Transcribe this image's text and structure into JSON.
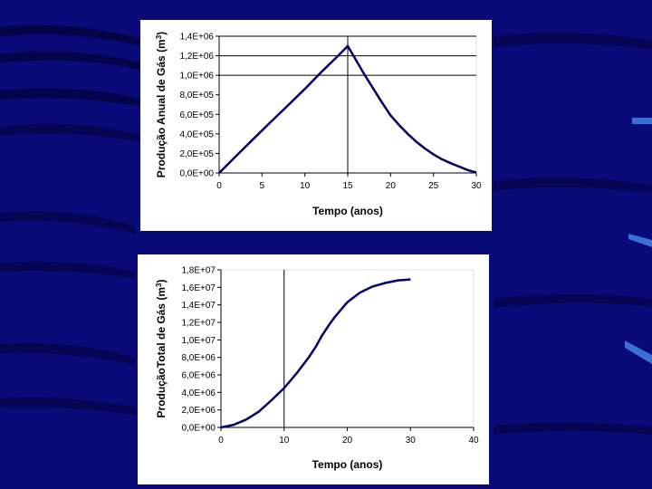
{
  "chart_data": [
    {
      "type": "line",
      "title": "",
      "xlabel": "Tempo (anos)",
      "ylabel": "Produção Anual de Gás (m",
      "ylabel_sup": "3",
      "ylabel_close": ")",
      "xlim": [
        0,
        30
      ],
      "ylim": [
        0,
        1400000
      ],
      "x_ticks": [
        "0",
        "5",
        "10",
        "15",
        "20",
        "25",
        "30"
      ],
      "x_tick_values": [
        0,
        5,
        10,
        15,
        20,
        25,
        30
      ],
      "y_ticks": [
        "0,0E+00",
        "2,0E+05",
        "4,0E+05",
        "6,0E+05",
        "8,0E+05",
        "1,0E+06",
        "1,2E+06",
        "1,4E+06"
      ],
      "y_tick_values": [
        0,
        200000,
        400000,
        600000,
        800000,
        1000000,
        1200000,
        1400000
      ],
      "gridlines_y": [
        1000000,
        1200000,
        1400000
      ],
      "gridlines_x": [
        15
      ],
      "grid": true,
      "line_color": "#000066",
      "series": [
        {
          "x": [
            0,
            2,
            4,
            6,
            8,
            10,
            12,
            14,
            15,
            16,
            17,
            18,
            19,
            20,
            21,
            22,
            23,
            24,
            25,
            26,
            27,
            28,
            29,
            30
          ],
          "y": [
            0,
            175000,
            350000,
            520000,
            690000,
            860000,
            1040000,
            1210000,
            1300000,
            1150000,
            1000000,
            860000,
            720000,
            590000,
            490000,
            400000,
            320000,
            250000,
            190000,
            140000,
            100000,
            65000,
            30000,
            5000
          ]
        }
      ]
    },
    {
      "type": "line",
      "title": "",
      "xlabel": "Tempo (anos)",
      "ylabel": "ProduçãoTotal de Gás (m",
      "ylabel_sup": "3",
      "ylabel_close": ")",
      "xlim": [
        0,
        40
      ],
      "ylim": [
        0,
        18000000
      ],
      "x_ticks": [
        "0",
        "10",
        "20",
        "30",
        "40"
      ],
      "x_tick_values": [
        0,
        10,
        20,
        30,
        40
      ],
      "y_ticks": [
        "0,0E+00",
        "2,0E+06",
        "4,0E+06",
        "6,0E+06",
        "8,0E+06",
        "1,0E+07",
        "1,2E+07",
        "1,4E+07",
        "1,6E+07",
        "1,8E+07"
      ],
      "y_tick_values": [
        0,
        2000000,
        4000000,
        6000000,
        8000000,
        10000000,
        12000000,
        14000000,
        16000000,
        18000000
      ],
      "gridlines_y": [],
      "gridlines_x": [
        10
      ],
      "grid": true,
      "line_color": "#000066",
      "series": [
        {
          "x": [
            0,
            2,
            4,
            6,
            8,
            10,
            12,
            14,
            15,
            16,
            17,
            18,
            20,
            22,
            24,
            26,
            28,
            30
          ],
          "y": [
            0,
            300000,
            900000,
            1800000,
            3100000,
            4500000,
            6200000,
            8100000,
            9200000,
            10500000,
            11600000,
            12600000,
            14300000,
            15400000,
            16100000,
            16500000,
            16800000,
            16900000
          ]
        }
      ]
    }
  ]
}
